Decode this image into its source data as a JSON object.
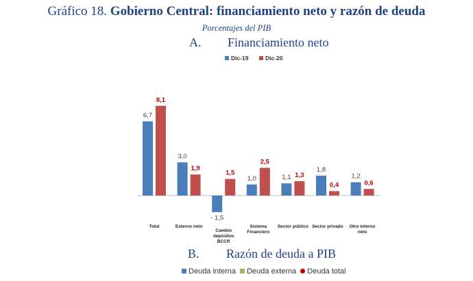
{
  "title": {
    "prefix": "Gráfico 18.",
    "main": "Gobierno Central: financiamiento neto y razón de deuda",
    "subtitle": "Porcentajes del PIB"
  },
  "panel_a": {
    "letter": "A.",
    "heading": "Financiamiento neto"
  },
  "panel_b": {
    "letter": "B.",
    "heading": "Razón de deuda a PIB"
  },
  "chart_data": {
    "type": "bar",
    "title": "Financiamiento neto",
    "categories": [
      "Total",
      "Externo neto",
      "Cambio depósitos BCCR",
      "Sistema Financiero",
      "Sector público",
      "Sector privado",
      "Otro interno neto"
    ],
    "category_lines": [
      [
        "Total"
      ],
      [
        "Externo neto"
      ],
      [
        "Cambio",
        "depósitos",
        "BCCR"
      ],
      [
        "Sistema",
        "Financiero"
      ],
      [
        "Sector público"
      ],
      [
        "Sector privado"
      ],
      [
        "Otro interno",
        "neto"
      ]
    ],
    "series": [
      {
        "name": "Dic-19",
        "values": [
          6.7,
          3.0,
          -1.5,
          1.0,
          1.1,
          1.8,
          1.2
        ],
        "labels": [
          "6,7",
          "3,0",
          "- 1,5",
          "1,0",
          "1,1",
          "1,8",
          "1,2"
        ],
        "color": "#4a7ebb",
        "label_color": "#404040"
      },
      {
        "name": "Dic-20",
        "values": [
          8.1,
          1.9,
          1.5,
          2.5,
          1.3,
          0.4,
          0.6
        ],
        "labels": [
          "8,1",
          "1,9",
          "1,5",
          "2,5",
          "1,3",
          "0,4",
          "0,6"
        ],
        "color": "#c0504d",
        "label_color": "#c00000"
      }
    ],
    "ylim": [
      -1.5,
      8.1
    ],
    "legend_position": "top-center",
    "grid": false
  },
  "legend_b": [
    {
      "label": "Deuda interna",
      "color": "#4a7ebb",
      "shape": "square"
    },
    {
      "label": "Deuda externa",
      "color": "#9bbb59",
      "shape": "square"
    },
    {
      "label": "Deuda total",
      "color": "#c00000",
      "shape": "dot"
    }
  ]
}
